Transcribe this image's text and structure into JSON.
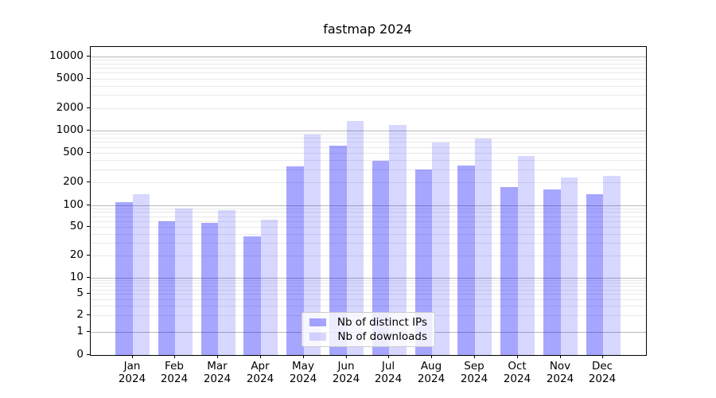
{
  "figure": {
    "title": "fastmap 2024"
  },
  "colors": {
    "bar_distinct_ips": "rgba(0,0,255,0.35)",
    "bar_downloads": "rgba(0,0,255,0.155)",
    "major_grid": "#b9b9b9",
    "minor_grid": "#e9e9e9",
    "spine": "#000000",
    "legend_border": "#cccccc"
  },
  "legend": {
    "entries": [
      {
        "label": "Nb of distinct IPs",
        "color_key": "bar_distinct_ips"
      },
      {
        "label": "Nb of downloads",
        "color_key": "bar_downloads"
      }
    ]
  },
  "chart_data": {
    "type": "bar",
    "title": "fastmap 2024",
    "scale": "symlog",
    "grid": "both",
    "legend_position": "lower center",
    "categories": [
      "Jan",
      "Feb",
      "Mar",
      "Apr",
      "May",
      "Jun",
      "Jul",
      "Aug",
      "Sep",
      "Oct",
      "Nov",
      "Dec"
    ],
    "year": "2024",
    "series": [
      {
        "name": "Nb of distinct IPs",
        "values": [
          110,
          60,
          57,
          37,
          330,
          620,
          395,
          300,
          340,
          175,
          162,
          140
        ]
      },
      {
        "name": "Nb of downloads",
        "values": [
          140,
          90,
          86,
          63,
          875,
          1340,
          1200,
          695,
          780,
          460,
          235,
          245
        ]
      }
    ],
    "yticks": [
      0,
      1,
      2,
      5,
      10,
      20,
      50,
      100,
      200,
      500,
      1000,
      2000,
      5000,
      10000
    ],
    "ylim": [
      0,
      13000
    ]
  }
}
